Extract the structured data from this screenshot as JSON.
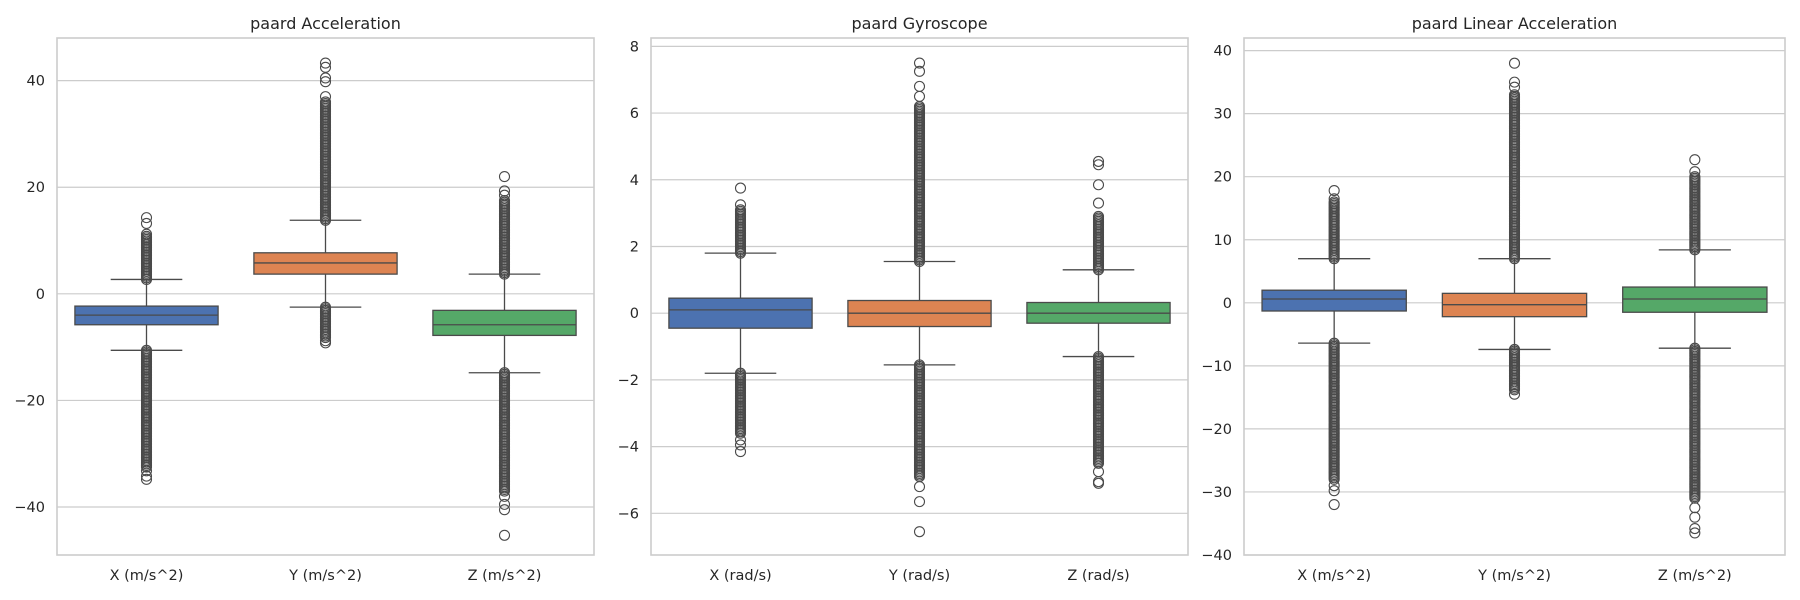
{
  "chart_data": [
    {
      "type": "box",
      "title": "paard Acceleration",
      "categories": [
        "X (m/s^2)",
        "Y (m/s^2)",
        "Z (m/s^2)"
      ],
      "ylim": [
        -49,
        48
      ],
      "yticks": [
        -40,
        -20,
        0,
        20,
        40
      ],
      "grid": true,
      "boxes": [
        {
          "color": "#4c72b0",
          "whislo": -10.6,
          "q1": -5.8,
          "median": -4.0,
          "q3": -2.3,
          "whishi": 2.7,
          "fliers_high_dense": [
            2.7,
            10.8
          ],
          "fliers_high": [
            11.2,
            13.2,
            14.3
          ],
          "fliers_low_dense": [
            -10.6,
            -32.5
          ],
          "fliers_low": [
            -33.2,
            -34.2,
            -34.8
          ]
        },
        {
          "color": "#dd8452",
          "whislo": -2.5,
          "q1": 3.7,
          "median": 5.8,
          "q3": 7.7,
          "whishi": 13.8,
          "fliers_high_dense": [
            13.8,
            36.0
          ],
          "fliers_high": [
            37.0,
            39.8,
            40.5,
            42.5,
            43.3
          ],
          "fliers_low_dense": [
            -2.5,
            -8.2
          ],
          "fliers_low": [
            -8.8,
            -9.2
          ]
        },
        {
          "color": "#55a868",
          "whislo": -14.8,
          "q1": -7.8,
          "median": -5.8,
          "q3": -3.1,
          "whishi": 3.7,
          "fliers_high_dense": [
            3.7,
            17.5
          ],
          "fliers_high": [
            18.5,
            19.3,
            22.0
          ],
          "fliers_low_dense": [
            -14.8,
            -37.0
          ],
          "fliers_low": [
            -38.0,
            -39.5,
            -40.5,
            -45.3
          ]
        }
      ]
    },
    {
      "type": "box",
      "title": "paard Gyroscope",
      "categories": [
        "X (rad/s)",
        "Y (rad/s)",
        "Z (rad/s)"
      ],
      "ylim": [
        -7.25,
        8.25
      ],
      "yticks": [
        -6,
        -4,
        -2,
        0,
        2,
        4,
        6,
        8
      ],
      "grid": true,
      "boxes": [
        {
          "color": "#4c72b0",
          "whislo": -1.8,
          "q1": -0.45,
          "median": 0.1,
          "q3": 0.45,
          "whishi": 1.8,
          "fliers_high_dense": [
            1.8,
            3.1
          ],
          "fliers_high": [
            3.25,
            3.75
          ],
          "fliers_low_dense": [
            -1.8,
            -3.6
          ],
          "fliers_low": [
            -3.8,
            -3.95,
            -4.15
          ]
        },
        {
          "color": "#dd8452",
          "whislo": -1.55,
          "q1": -0.4,
          "median": 0.0,
          "q3": 0.38,
          "whishi": 1.55,
          "fliers_high_dense": [
            1.55,
            6.2
          ],
          "fliers_high": [
            6.5,
            6.8,
            7.25,
            7.5
          ],
          "fliers_low_dense": [
            -1.55,
            -4.9
          ],
          "fliers_low": [
            -5.2,
            -5.65,
            -6.55
          ]
        },
        {
          "color": "#55a868",
          "whislo": -1.3,
          "q1": -0.3,
          "median": 0.0,
          "q3": 0.32,
          "whishi": 1.3,
          "fliers_high_dense": [
            1.3,
            2.9
          ],
          "fliers_high": [
            3.3,
            3.85,
            4.45,
            4.55
          ],
          "fliers_low_dense": [
            -1.3,
            -4.5
          ],
          "fliers_low": [
            -4.75,
            -5.05,
            -5.1
          ]
        }
      ]
    },
    {
      "type": "box",
      "title": "paard Linear Acceleration",
      "categories": [
        "X (m/s^2)",
        "Y (m/s^2)",
        "Z (m/s^2)"
      ],
      "ylim": [
        -40,
        42
      ],
      "yticks": [
        -40,
        -30,
        -20,
        -10,
        0,
        10,
        20,
        30,
        40
      ],
      "grid": true,
      "boxes": [
        {
          "color": "#4c72b0",
          "whislo": -6.4,
          "q1": -1.3,
          "median": 0.6,
          "q3": 2.0,
          "whishi": 7.0,
          "fliers_high_dense": [
            7.0,
            16.0
          ],
          "fliers_high": [
            16.5,
            17.8
          ],
          "fliers_low_dense": [
            -6.4,
            -28.0
          ],
          "fliers_low": [
            -29.0,
            -29.8,
            -32.0
          ]
        },
        {
          "color": "#dd8452",
          "whislo": -7.4,
          "q1": -2.2,
          "median": -0.3,
          "q3": 1.5,
          "whishi": 7.0,
          "fliers_high_dense": [
            7.0,
            33.0
          ],
          "fliers_high": [
            34.2,
            35.0,
            38.0
          ],
          "fliers_low_dense": [
            -7.4,
            -13.8
          ],
          "fliers_low": [
            -14.5
          ]
        },
        {
          "color": "#55a868",
          "whislo": -7.2,
          "q1": -1.5,
          "median": 0.6,
          "q3": 2.5,
          "whishi": 8.4,
          "fliers_high_dense": [
            8.4,
            20.0
          ],
          "fliers_high": [
            20.8,
            22.7
          ],
          "fliers_low_dense": [
            -7.2,
            -31.0
          ],
          "fliers_low": [
            -32.5,
            -34.0,
            -35.8,
            -36.5
          ]
        }
      ]
    }
  ]
}
